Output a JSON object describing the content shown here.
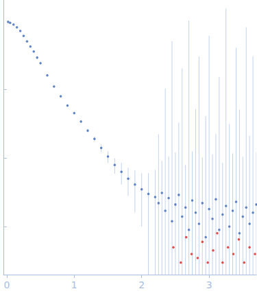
{
  "chart_data": {
    "type": "scatter",
    "log": "y",
    "tick_labels": "x",
    "xlim": [
      -0.05,
      3.7
    ],
    "xticks": [
      0,
      1,
      2,
      3
    ],
    "ylim": [
      0.0002,
      2
    ],
    "yticks": [
      0.001,
      0.01,
      0.1
    ],
    "grid": false,
    "series": [
      {
        "color": "#3a66b8",
        "marker": "circle",
        "x": [
          0.02,
          0.05,
          0.1,
          0.15,
          0.2,
          0.25,
          0.3,
          0.35,
          0.4,
          0.45,
          0.5,
          0.6,
          0.7,
          0.8,
          0.9,
          1.0,
          1.1,
          1.2,
          1.3,
          1.4,
          1.5,
          1.6,
          1.7,
          1.8,
          1.9,
          2.0,
          2.1,
          2.2,
          2.25,
          2.3,
          2.35,
          2.4,
          2.45,
          2.5,
          2.55,
          2.6,
          2.65,
          2.7,
          2.75,
          2.8,
          2.85,
          2.9,
          2.95,
          3.0,
          3.05,
          3.1,
          3.15,
          3.2,
          3.25,
          3.3,
          3.35,
          3.4,
          3.45,
          3.5,
          3.55,
          3.6,
          3.65,
          3.7
        ],
        "values": [
          0.96,
          0.93,
          0.88,
          0.8,
          0.71,
          0.6,
          0.5,
          0.42,
          0.355,
          0.29,
          0.24,
          0.16,
          0.11,
          0.079,
          0.058,
          0.045,
          0.034,
          0.025,
          0.019,
          0.014,
          0.0105,
          0.0079,
          0.0063,
          0.005,
          0.0041,
          0.0035,
          0.003,
          0.0027,
          0.0022,
          0.0031,
          0.0017,
          0.0026,
          0.0012,
          0.0021,
          0.0029,
          0.0014,
          0.0019,
          0.0009,
          0.0024,
          0.0016,
          0.0011,
          0.0022,
          0.0007,
          0.0018,
          0.0013,
          0.0025,
          0.0009,
          0.0015,
          0.002,
          0.001,
          0.0017,
          0.0023,
          0.0008,
          0.0014,
          0.0019,
          0.0011,
          0.0016,
          0.0021
        ],
        "errors": [
          0.002,
          0.002,
          0.002,
          0.002,
          0.002,
          0.002,
          0.002,
          0.002,
          0.002,
          0.002,
          0.002,
          0.002,
          0.0015,
          0.0015,
          0.0015,
          0.0015,
          0.0015,
          0.0015,
          0.0015,
          0.0018,
          0.002,
          0.002,
          0.0022,
          0.0022,
          0.0025,
          0.0025,
          0.003,
          0.004,
          0.02,
          0.006,
          0.1,
          0.008,
          0.5,
          0.01,
          0.03,
          0.2,
          0.006,
          1,
          0.01,
          0.05,
          0.3,
          0.008,
          0.04,
          0.6,
          0.01,
          0.02,
          0.15,
          0.007,
          1.5,
          0.03,
          0.01,
          0.4,
          0.05,
          0.009,
          0.8,
          0.02,
          0.3,
          0.01
        ]
      },
      {
        "color": "#e0201b",
        "marker": "circle",
        "x": [
          2.47,
          2.58,
          2.66,
          2.74,
          2.83,
          2.9,
          2.98,
          3.06,
          3.12,
          3.2,
          3.28,
          3.36,
          3.44,
          3.52,
          3.6,
          3.68
        ],
        "values": [
          0.0005,
          0.0003,
          0.0007,
          0.0004,
          0.00035,
          0.0006,
          0.0003,
          0.00045,
          0.0008,
          0.0003,
          0.0005,
          0.0004,
          0.00065,
          0.0003,
          0.0005,
          0.0004
        ]
      }
    ]
  }
}
